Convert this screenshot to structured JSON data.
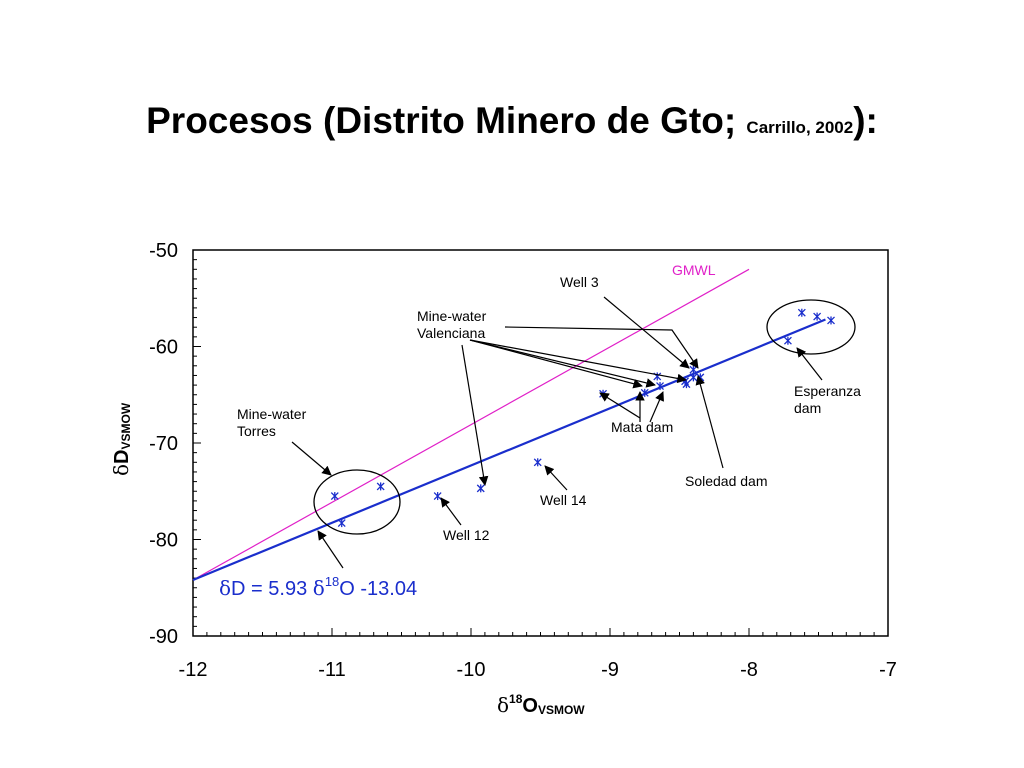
{
  "slide": {
    "title_main": "Procesos (Distrito Minero de Gto; ",
    "title_citation": "Carrillo, 2002",
    "title_end": "):"
  },
  "chart_data": {
    "type": "scatter",
    "title": "",
    "xlabel_prefix": "δ",
    "xlabel_sup": "18",
    "xlabel_main": "O",
    "xlabel_sub": "VSMOW",
    "ylabel_prefix": "δ",
    "ylabel_main": "D",
    "ylabel_sub": "VSMOW",
    "xlim": [
      -12,
      -7
    ],
    "ylim": [
      -90,
      -50
    ],
    "x_ticks": [
      -12,
      -11,
      -10,
      -9,
      -8,
      -7
    ],
    "y_ticks": [
      -50,
      -60,
      -70,
      -80,
      -90
    ],
    "grid": false,
    "series": [
      {
        "name": "GMWL",
        "kind": "line",
        "color": "#e020c8",
        "x": [
          -12.0,
          -8.0
        ],
        "y": [
          -84.2,
          -52.0
        ]
      },
      {
        "kind": "line",
        "color": "#1a2ecc",
        "x": [
          -12.0,
          -7.45
        ],
        "y": [
          -84.2,
          -57.2
        ]
      },
      {
        "kind": "points",
        "color": "#1a2ecc",
        "marker": "asterisk",
        "x": [
          -10.98,
          -10.93,
          -10.65,
          -10.24,
          -9.93,
          -9.52,
          -9.05,
          -8.75,
          -8.66,
          -8.64,
          -8.46,
          -8.45,
          -8.4,
          -8.4,
          -8.35,
          -7.72,
          -7.62,
          -7.51,
          -7.41
        ],
        "y": [
          -75.5,
          -78.3,
          -74.5,
          -75.5,
          -74.7,
          -72.0,
          -64.9,
          -64.8,
          -63.1,
          -64.1,
          -63.6,
          -63.9,
          -62.4,
          -63.2,
          -63.2,
          -59.4,
          -56.5,
          -56.9,
          -57.3
        ]
      }
    ],
    "equation": {
      "prefix": "δ",
      "part1": "D = 5.93 ",
      "prefix2": "δ",
      "sup": "18",
      "part2": "O -13.04",
      "color": "#1a2ecc"
    },
    "annotations": [
      {
        "lines": [
          "Well 3"
        ]
      },
      {
        "lines": [
          "GMWL"
        ],
        "color": "#e020c8"
      },
      {
        "lines": [
          "Mine-water",
          "Valenciana"
        ]
      },
      {
        "lines": [
          "Esperanza",
          "dam"
        ]
      },
      {
        "lines": [
          "Mine-water",
          "Torres"
        ]
      },
      {
        "lines": [
          "Mata dam"
        ]
      },
      {
        "lines": [
          "Soledad dam"
        ]
      },
      {
        "lines": [
          "Well 14"
        ]
      },
      {
        "lines": [
          "Well 12"
        ]
      }
    ]
  }
}
